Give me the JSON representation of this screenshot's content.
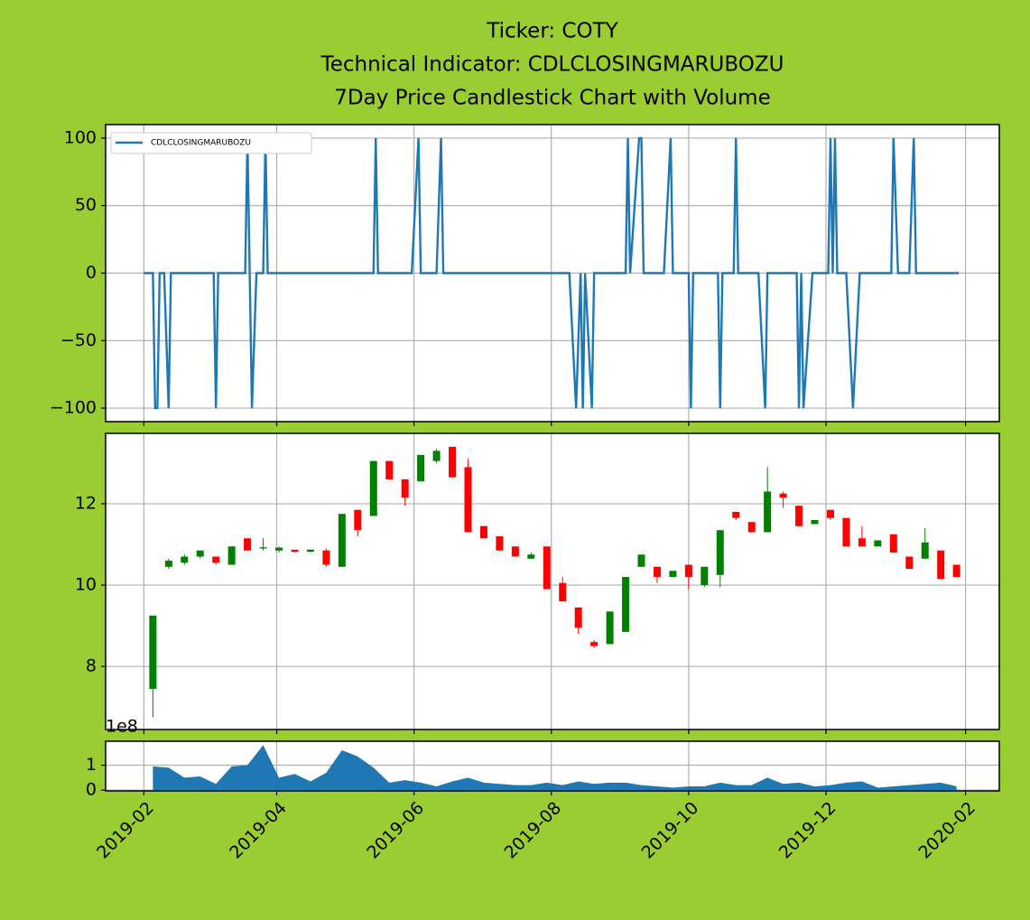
{
  "chart_data": [
    {
      "type": "line",
      "title": [
        "Ticker: COTY",
        "Technical Indicator: CDLCLOSINGMARUBOZU",
        "7Day Price Candlestick Chart with Volume"
      ],
      "x": [
        "2019-02-01",
        "2019-02-05",
        "2019-02-06",
        "2019-02-07",
        "2019-02-08",
        "2019-02-10",
        "2019-02-12",
        "2019-02-13",
        "2019-03-04",
        "2019-03-05",
        "2019-03-06",
        "2019-03-18",
        "2019-03-19",
        "2019-03-21",
        "2019-03-23",
        "2019-03-26",
        "2019-03-27",
        "2019-03-28",
        "2019-05-14",
        "2019-05-15",
        "2019-05-16",
        "2019-05-31",
        "2019-06-03",
        "2019-06-04",
        "2019-06-11",
        "2019-06-13",
        "2019-06-14",
        "2019-08-09",
        "2019-08-12",
        "2019-08-14",
        "2019-08-15",
        "2019-08-16",
        "2019-08-19",
        "2019-08-20",
        "2019-09-03",
        "2019-09-04",
        "2019-09-05",
        "2019-09-09",
        "2019-09-10",
        "2019-09-11",
        "2019-09-20",
        "2019-09-23",
        "2019-09-24",
        "2019-10-01",
        "2019-10-02",
        "2019-10-03",
        "2019-10-14",
        "2019-10-15",
        "2019-10-16",
        "2019-10-21",
        "2019-10-22",
        "2019-10-23",
        "2019-11-01",
        "2019-11-04",
        "2019-11-05",
        "2019-11-18",
        "2019-11-19",
        "2019-11-20",
        "2019-11-21",
        "2019-11-25",
        "2019-12-02",
        "2019-12-03",
        "2019-12-04",
        "2019-12-05",
        "2019-12-06",
        "2019-12-10",
        "2019-12-13",
        "2019-12-16",
        "2019-12-30",
        "2019-12-31",
        "2020-01-02",
        "2020-01-07",
        "2020-01-09",
        "2020-01-10",
        "2020-01-29"
      ],
      "series": [
        {
          "name": "CDLCLOSINGMARUBOZU",
          "color": "#1f77b4",
          "values": [
            0,
            0,
            -100,
            -100,
            0,
            0,
            -100,
            0,
            0,
            -100,
            0,
            0,
            100,
            -100,
            0,
            0,
            100,
            0,
            0,
            100,
            0,
            0,
            100,
            0,
            0,
            100,
            0,
            0,
            -100,
            0,
            -100,
            0,
            -100,
            0,
            0,
            100,
            0,
            100,
            100,
            0,
            0,
            100,
            0,
            0,
            -100,
            0,
            0,
            -100,
            0,
            0,
            100,
            0,
            0,
            -100,
            0,
            0,
            -100,
            0,
            -100,
            0,
            0,
            100,
            0,
            100,
            0,
            0,
            -100,
            0,
            0,
            100,
            0,
            0,
            100,
            0,
            0
          ]
        }
      ],
      "ylim": [
        -110,
        110
      ],
      "yticks": [
        100,
        50,
        0,
        {
          "value": -50,
          "label": "−50"
        },
        {
          "value": -100,
          "label": "−100"
        }
      ],
      "grid": true,
      "legend": "upper left"
    },
    {
      "type": "candlestick",
      "x": [
        "2019-02-05",
        "2019-02-12",
        "2019-02-19",
        "2019-02-26",
        "2019-03-05",
        "2019-03-12",
        "2019-03-19",
        "2019-03-26",
        "2019-04-02",
        "2019-04-09",
        "2019-04-16",
        "2019-04-23",
        "2019-04-30",
        "2019-05-07",
        "2019-05-14",
        "2019-05-21",
        "2019-05-28",
        "2019-06-04",
        "2019-06-11",
        "2019-06-18",
        "2019-06-25",
        "2019-07-02",
        "2019-07-09",
        "2019-07-16",
        "2019-07-23",
        "2019-07-30",
        "2019-08-06",
        "2019-08-13",
        "2019-08-20",
        "2019-08-27",
        "2019-09-03",
        "2019-09-10",
        "2019-09-17",
        "2019-09-24",
        "2019-10-01",
        "2019-10-08",
        "2019-10-15",
        "2019-10-22",
        "2019-10-29",
        "2019-11-05",
        "2019-11-12",
        "2019-11-19",
        "2019-11-26",
        "2019-12-03",
        "2019-12-10",
        "2019-12-17",
        "2019-12-24",
        "2019-12-31",
        "2020-01-07",
        "2020-01-14",
        "2020-01-21",
        "2020-01-28"
      ],
      "open": [
        7.45,
        10.45,
        10.55,
        10.7,
        10.7,
        10.5,
        11.15,
        10.9,
        10.85,
        10.87,
        10.82,
        10.85,
        10.45,
        11.85,
        11.7,
        13.05,
        12.6,
        12.55,
        13.05,
        13.4,
        12.9,
        11.45,
        11.2,
        10.95,
        10.65,
        10.95,
        10.05,
        9.45,
        8.6,
        8.55,
        8.85,
        10.45,
        10.45,
        10.2,
        10.5,
        10.0,
        10.25,
        11.8,
        11.55,
        11.3,
        12.25,
        11.95,
        11.5,
        11.85,
        11.65,
        11.15,
        10.95,
        11.25,
        10.7,
        10.65,
        10.85,
        10.5
      ],
      "high": [
        9.25,
        10.65,
        10.75,
        10.85,
        10.7,
        10.95,
        11.15,
        11.15,
        10.95,
        10.87,
        10.88,
        10.9,
        11.75,
        11.85,
        13.05,
        13.05,
        12.6,
        13.2,
        13.35,
        13.4,
        13.1,
        11.45,
        11.2,
        10.95,
        10.8,
        10.95,
        10.2,
        9.45,
        8.65,
        9.35,
        10.2,
        10.75,
        10.45,
        10.35,
        10.5,
        10.45,
        11.35,
        11.8,
        11.55,
        12.9,
        12.3,
        11.95,
        11.6,
        11.85,
        11.65,
        11.45,
        11.1,
        11.25,
        10.7,
        11.4,
        10.85,
        10.5
      ],
      "low": [
        6.75,
        10.4,
        10.5,
        10.65,
        10.5,
        10.5,
        10.85,
        10.85,
        10.8,
        10.8,
        10.8,
        10.45,
        10.45,
        11.2,
        11.7,
        12.6,
        11.95,
        12.55,
        13.0,
        12.65,
        11.3,
        11.15,
        10.85,
        10.7,
        10.65,
        9.9,
        9.6,
        8.8,
        8.45,
        8.55,
        8.85,
        10.45,
        10.05,
        10.2,
        9.9,
        9.95,
        9.95,
        11.6,
        11.3,
        11.3,
        11.9,
        11.45,
        11.5,
        11.6,
        10.95,
        10.95,
        10.95,
        10.8,
        10.4,
        10.65,
        10.15,
        10.2
      ],
      "close": [
        9.25,
        10.6,
        10.7,
        10.85,
        10.55,
        10.95,
        10.85,
        10.93,
        10.92,
        10.82,
        10.87,
        10.5,
        11.75,
        11.35,
        13.05,
        12.6,
        12.15,
        13.2,
        13.3,
        12.65,
        11.3,
        11.15,
        10.85,
        10.7,
        10.75,
        9.9,
        9.6,
        8.95,
        8.5,
        9.35,
        10.2,
        10.75,
        10.2,
        10.35,
        10.2,
        10.45,
        11.35,
        11.65,
        11.3,
        12.3,
        12.15,
        11.45,
        11.6,
        11.65,
        10.95,
        10.95,
        11.1,
        10.8,
        10.4,
        11.05,
        10.15,
        10.2
      ],
      "up_color": "green",
      "down_color": "red",
      "ylim": [
        6.45,
        13.73
      ],
      "yticks": [
        8,
        10,
        12
      ],
      "grid": true
    },
    {
      "type": "area",
      "x": [
        "2019-02-05",
        "2019-02-12",
        "2019-02-19",
        "2019-02-26",
        "2019-03-05",
        "2019-03-12",
        "2019-03-19",
        "2019-03-26",
        "2019-04-02",
        "2019-04-09",
        "2019-04-16",
        "2019-04-23",
        "2019-04-30",
        "2019-05-07",
        "2019-05-14",
        "2019-05-21",
        "2019-05-28",
        "2019-06-04",
        "2019-06-11",
        "2019-06-18",
        "2019-06-25",
        "2019-07-02",
        "2019-07-09",
        "2019-07-16",
        "2019-07-23",
        "2019-07-30",
        "2019-08-06",
        "2019-08-13",
        "2019-08-20",
        "2019-08-27",
        "2019-09-03",
        "2019-09-10",
        "2019-09-17",
        "2019-09-24",
        "2019-10-01",
        "2019-10-08",
        "2019-10-15",
        "2019-10-22",
        "2019-10-29",
        "2019-11-05",
        "2019-11-12",
        "2019-11-19",
        "2019-11-26",
        "2019-12-03",
        "2019-12-10",
        "2019-12-17",
        "2019-12-24",
        "2019-12-31",
        "2020-01-07",
        "2020-01-14",
        "2020-01-21",
        "2020-01-28"
      ],
      "values": [
        0.95,
        0.9,
        0.5,
        0.55,
        0.25,
        0.95,
        1.0,
        1.8,
        0.5,
        0.65,
        0.35,
        0.7,
        1.6,
        1.35,
        0.9,
        0.3,
        0.4,
        0.3,
        0.15,
        0.35,
        0.5,
        0.3,
        0.25,
        0.2,
        0.2,
        0.3,
        0.2,
        0.35,
        0.25,
        0.3,
        0.3,
        0.2,
        0.15,
        0.1,
        0.15,
        0.15,
        0.3,
        0.2,
        0.2,
        0.5,
        0.25,
        0.3,
        0.15,
        0.2,
        0.3,
        0.35,
        0.1,
        0.15,
        0.2,
        0.25,
        0.3,
        0.15
      ],
      "color": "#1f77b4",
      "offset_label": "1e8",
      "ylim": [
        -0.03,
        1.96
      ],
      "yticks": [
        0,
        1
      ],
      "xlim": [
        "2019-01-15",
        "2020-02-16"
      ],
      "xticks": [
        "2019-02",
        "2019-04",
        "2019-06",
        "2019-08",
        "2019-10",
        "2019-12",
        "2020-02"
      ],
      "grid": true
    }
  ]
}
